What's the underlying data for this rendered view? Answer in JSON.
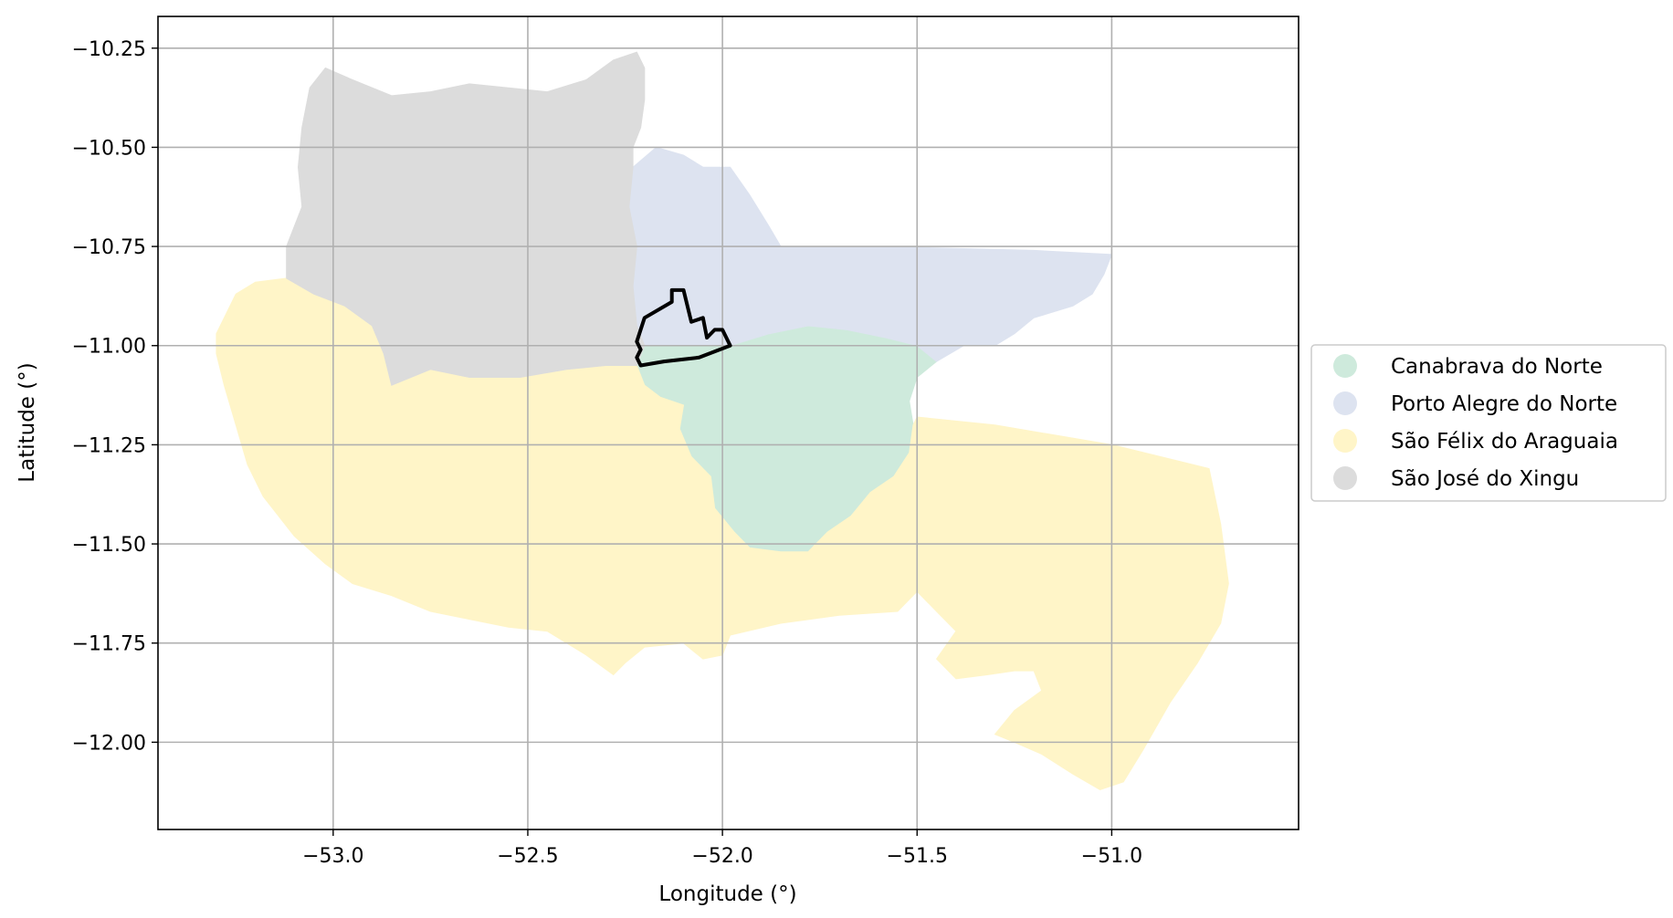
{
  "chart_data": {
    "type": "map",
    "xlabel": "Longitude (°)",
    "ylabel": "Latitude (°)",
    "xlim": [
      -53.45,
      -50.52
    ],
    "ylim": [
      -12.22,
      -10.17
    ],
    "xticks": [
      -53.0,
      -52.5,
      -52.0,
      -51.5,
      -51.0
    ],
    "yticks": [
      -10.25,
      -10.5,
      -10.75,
      -11.0,
      -11.25,
      -11.5,
      -11.75,
      -12.0
    ],
    "xtick_labels": [
      "−53.0",
      "−52.5",
      "−52.0",
      "−51.5",
      "−51.0"
    ],
    "ytick_labels": [
      "−10.25",
      "−10.50",
      "−10.75",
      "−11.00",
      "−11.25",
      "−11.50",
      "−11.75",
      "−12.00"
    ],
    "grid": true,
    "legend_position": "right, outside plot",
    "regions": [
      {
        "name": "Canabrava do Norte",
        "color": "#ceeadc",
        "boundary": [
          [
            -52.2,
            -11.0
          ],
          [
            -52.1,
            -11.0
          ],
          [
            -51.98,
            -11.0
          ],
          [
            -51.88,
            -10.97
          ],
          [
            -51.78,
            -10.95
          ],
          [
            -51.68,
            -10.96
          ],
          [
            -51.58,
            -10.98
          ],
          [
            -51.5,
            -11.0
          ],
          [
            -51.45,
            -11.04
          ],
          [
            -51.5,
            -11.08
          ],
          [
            -51.52,
            -11.14
          ],
          [
            -51.51,
            -11.2
          ],
          [
            -51.52,
            -11.27
          ],
          [
            -51.56,
            -11.33
          ],
          [
            -51.62,
            -11.37
          ],
          [
            -51.67,
            -11.43
          ],
          [
            -51.73,
            -11.47
          ],
          [
            -51.78,
            -11.52
          ],
          [
            -51.85,
            -11.52
          ],
          [
            -51.93,
            -11.51
          ],
          [
            -51.97,
            -11.47
          ],
          [
            -52.02,
            -11.41
          ],
          [
            -52.03,
            -11.33
          ],
          [
            -52.08,
            -11.28
          ],
          [
            -52.11,
            -11.21
          ],
          [
            -52.1,
            -11.15
          ],
          [
            -52.16,
            -11.13
          ],
          [
            -52.2,
            -11.1
          ],
          [
            -52.22,
            -11.05
          ]
        ]
      },
      {
        "name": "Porto Alegre do Norte",
        "color": "#dde3f0",
        "boundary": [
          [
            -52.23,
            -10.55
          ],
          [
            -52.17,
            -10.5
          ],
          [
            -52.1,
            -10.52
          ],
          [
            -52.05,
            -10.55
          ],
          [
            -51.98,
            -10.55
          ],
          [
            -51.93,
            -10.62
          ],
          [
            -51.88,
            -10.7
          ],
          [
            -51.85,
            -10.75
          ],
          [
            -51.6,
            -10.75
          ],
          [
            -51.2,
            -10.76
          ],
          [
            -51.0,
            -10.77
          ],
          [
            -51.02,
            -10.82
          ],
          [
            -51.05,
            -10.87
          ],
          [
            -51.1,
            -10.9
          ],
          [
            -51.2,
            -10.93
          ],
          [
            -51.25,
            -10.97
          ],
          [
            -51.3,
            -11.0
          ],
          [
            -51.38,
            -11.0
          ],
          [
            -51.45,
            -11.04
          ],
          [
            -51.5,
            -11.0
          ],
          [
            -51.58,
            -10.98
          ],
          [
            -51.68,
            -10.96
          ],
          [
            -51.78,
            -10.95
          ],
          [
            -51.88,
            -10.97
          ],
          [
            -51.98,
            -11.0
          ],
          [
            -52.1,
            -11.0
          ],
          [
            -52.2,
            -11.0
          ],
          [
            -52.22,
            -10.95
          ],
          [
            -52.23,
            -10.85
          ],
          [
            -52.22,
            -10.75
          ],
          [
            -52.24,
            -10.65
          ]
        ]
      },
      {
        "name": "São Félix do Araguaia",
        "color": "#fff5c8",
        "boundary": [
          [
            -53.3,
            -10.97
          ],
          [
            -53.25,
            -10.87
          ],
          [
            -53.2,
            -10.84
          ],
          [
            -53.12,
            -10.83
          ],
          [
            -53.05,
            -10.87
          ],
          [
            -52.97,
            -10.9
          ],
          [
            -52.9,
            -10.95
          ],
          [
            -52.87,
            -11.02
          ],
          [
            -52.85,
            -11.1
          ],
          [
            -52.75,
            -11.06
          ],
          [
            -52.65,
            -11.08
          ],
          [
            -52.52,
            -11.08
          ],
          [
            -52.4,
            -11.06
          ],
          [
            -52.3,
            -11.05
          ],
          [
            -52.22,
            -11.05
          ],
          [
            -52.2,
            -11.1
          ],
          [
            -52.16,
            -11.13
          ],
          [
            -52.1,
            -11.15
          ],
          [
            -52.11,
            -11.21
          ],
          [
            -52.08,
            -11.28
          ],
          [
            -52.03,
            -11.33
          ],
          [
            -52.02,
            -11.41
          ],
          [
            -51.97,
            -11.47
          ],
          [
            -51.93,
            -11.51
          ],
          [
            -51.85,
            -11.52
          ],
          [
            -51.78,
            -11.52
          ],
          [
            -51.73,
            -11.47
          ],
          [
            -51.67,
            -11.43
          ],
          [
            -51.62,
            -11.37
          ],
          [
            -51.56,
            -11.33
          ],
          [
            -51.52,
            -11.27
          ],
          [
            -51.51,
            -11.2
          ],
          [
            -51.5,
            -11.18
          ],
          [
            -51.3,
            -11.2
          ],
          [
            -51.0,
            -11.25
          ],
          [
            -50.75,
            -11.31
          ],
          [
            -50.72,
            -11.45
          ],
          [
            -50.7,
            -11.6
          ],
          [
            -50.72,
            -11.7
          ],
          [
            -50.78,
            -11.8
          ],
          [
            -50.85,
            -11.9
          ],
          [
            -50.92,
            -12.02
          ],
          [
            -50.97,
            -12.1
          ],
          [
            -51.03,
            -12.12
          ],
          [
            -51.1,
            -12.08
          ],
          [
            -51.18,
            -12.03
          ],
          [
            -51.25,
            -12.0
          ],
          [
            -51.3,
            -11.98
          ],
          [
            -51.25,
            -11.92
          ],
          [
            -51.18,
            -11.87
          ],
          [
            -51.2,
            -11.82
          ],
          [
            -51.25,
            -11.82
          ],
          [
            -51.32,
            -11.83
          ],
          [
            -51.4,
            -11.84
          ],
          [
            -51.45,
            -11.79
          ],
          [
            -51.4,
            -11.72
          ],
          [
            -51.45,
            -11.67
          ],
          [
            -51.5,
            -11.62
          ],
          [
            -51.55,
            -11.67
          ],
          [
            -51.7,
            -11.68
          ],
          [
            -51.85,
            -11.7
          ],
          [
            -51.98,
            -11.73
          ],
          [
            -52.0,
            -11.78
          ],
          [
            -52.05,
            -11.79
          ],
          [
            -52.1,
            -11.75
          ],
          [
            -52.2,
            -11.76
          ],
          [
            -52.25,
            -11.8
          ],
          [
            -52.28,
            -11.83
          ],
          [
            -52.35,
            -11.78
          ],
          [
            -52.45,
            -11.72
          ],
          [
            -52.55,
            -11.71
          ],
          [
            -52.65,
            -11.69
          ],
          [
            -52.75,
            -11.67
          ],
          [
            -52.85,
            -11.63
          ],
          [
            -52.95,
            -11.6
          ],
          [
            -53.02,
            -11.55
          ],
          [
            -53.1,
            -11.48
          ],
          [
            -53.18,
            -11.38
          ],
          [
            -53.22,
            -11.3
          ],
          [
            -53.25,
            -11.2
          ],
          [
            -53.28,
            -11.1
          ],
          [
            -53.3,
            -11.02
          ]
        ]
      },
      {
        "name": "São José do Xingu",
        "color": "#dcdcdc",
        "boundary": [
          [
            -53.02,
            -10.3
          ],
          [
            -52.95,
            -10.33
          ],
          [
            -52.85,
            -10.37
          ],
          [
            -52.75,
            -10.36
          ],
          [
            -52.65,
            -10.34
          ],
          [
            -52.55,
            -10.35
          ],
          [
            -52.45,
            -10.36
          ],
          [
            -52.35,
            -10.33
          ],
          [
            -52.28,
            -10.28
          ],
          [
            -52.22,
            -10.26
          ],
          [
            -52.2,
            -10.3
          ],
          [
            -52.2,
            -10.38
          ],
          [
            -52.21,
            -10.45
          ],
          [
            -52.23,
            -10.5
          ],
          [
            -52.23,
            -10.55
          ],
          [
            -52.24,
            -10.65
          ],
          [
            -52.22,
            -10.75
          ],
          [
            -52.23,
            -10.85
          ],
          [
            -52.22,
            -10.95
          ],
          [
            -52.2,
            -11.0
          ],
          [
            -52.22,
            -11.05
          ],
          [
            -52.3,
            -11.05
          ],
          [
            -52.4,
            -11.06
          ],
          [
            -52.52,
            -11.08
          ],
          [
            -52.65,
            -11.08
          ],
          [
            -52.75,
            -11.06
          ],
          [
            -52.85,
            -11.1
          ],
          [
            -52.87,
            -11.02
          ],
          [
            -52.9,
            -10.95
          ],
          [
            -52.97,
            -10.9
          ],
          [
            -53.05,
            -10.87
          ],
          [
            -53.12,
            -10.83
          ],
          [
            -53.12,
            -10.75
          ],
          [
            -53.08,
            -10.65
          ],
          [
            -53.09,
            -10.55
          ],
          [
            -53.08,
            -10.45
          ],
          [
            -53.06,
            -10.35
          ]
        ]
      }
    ],
    "outline": {
      "color": "#000000",
      "boundary": [
        [
          -52.22,
          -10.99
        ],
        [
          -52.2,
          -10.93
        ],
        [
          -52.13,
          -10.89
        ],
        [
          -52.13,
          -10.86
        ],
        [
          -52.1,
          -10.86
        ],
        [
          -52.08,
          -10.94
        ],
        [
          -52.05,
          -10.93
        ],
        [
          -52.04,
          -10.98
        ],
        [
          -52.02,
          -10.96
        ],
        [
          -52.0,
          -10.96
        ],
        [
          -51.98,
          -11.0
        ],
        [
          -52.06,
          -11.03
        ],
        [
          -52.15,
          -11.04
        ],
        [
          -52.21,
          -11.05
        ],
        [
          -52.22,
          -11.03
        ],
        [
          -52.21,
          -11.01
        ]
      ]
    }
  }
}
